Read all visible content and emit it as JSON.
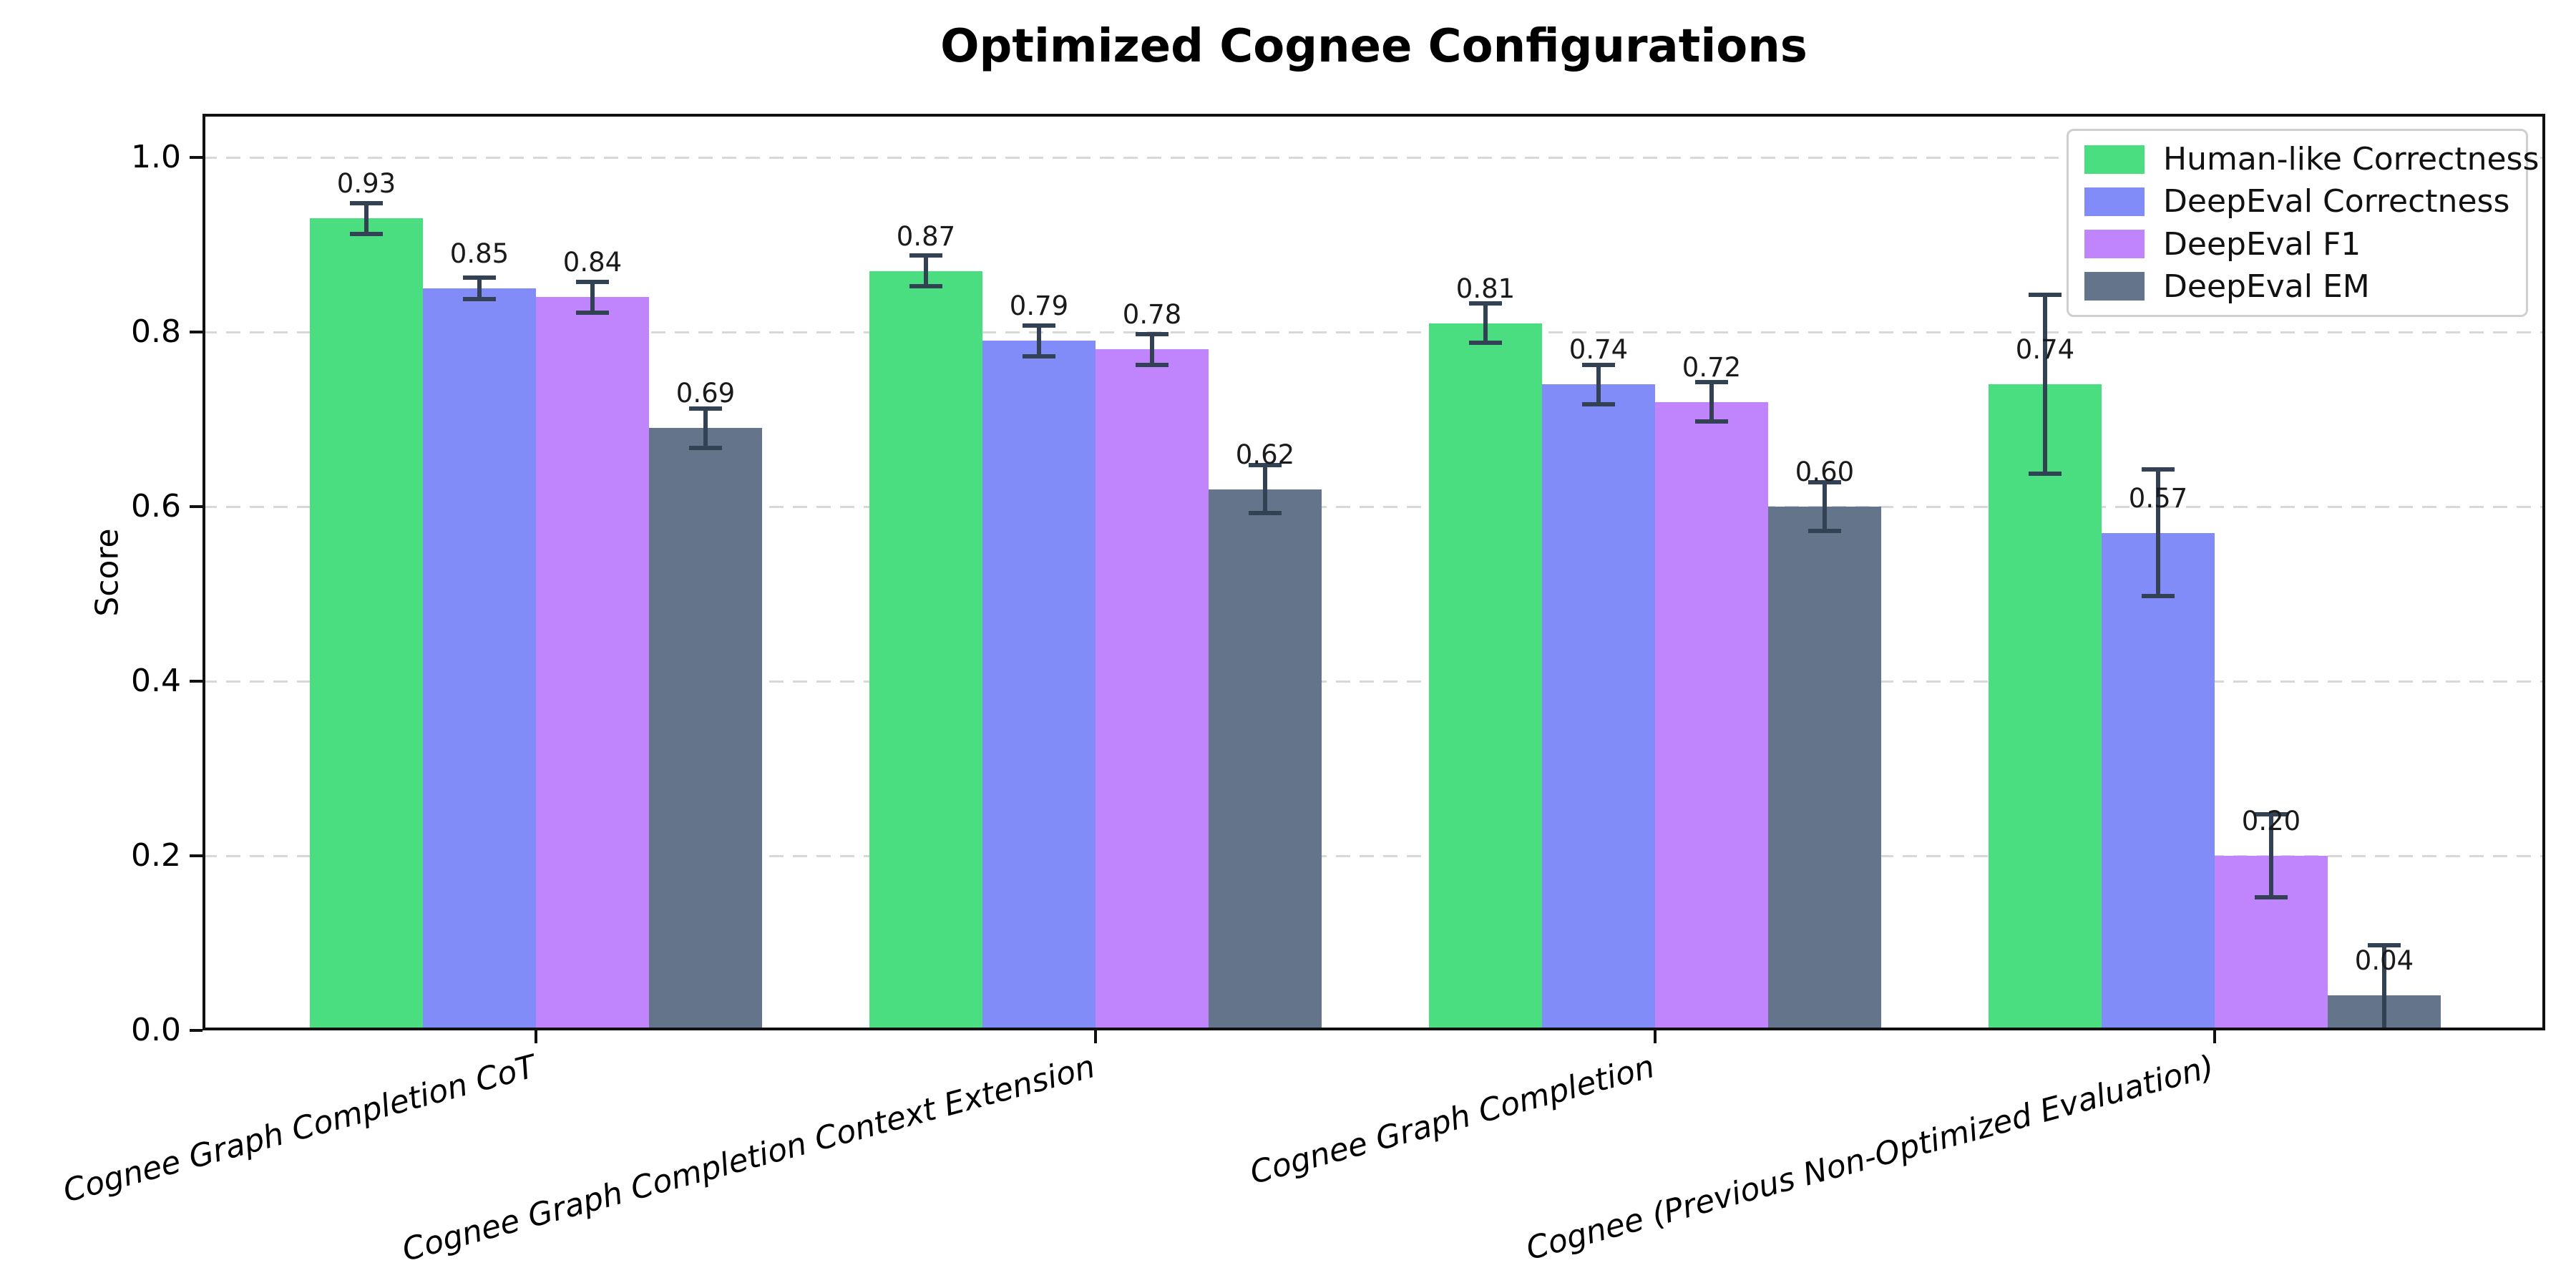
{
  "chart_data": {
    "type": "bar",
    "title": "Optimized Cognee Configurations",
    "xlabel": "",
    "ylabel": "Score",
    "ylim": [
      0,
      1.05
    ],
    "yticks": [
      "0.0",
      "0.2",
      "0.4",
      "0.6",
      "0.8",
      "1.0"
    ],
    "grid": "horizontal dashed gridlines",
    "legend_position": "upper right",
    "error_bar_color": "#334155",
    "categories": [
      "Cognee Graph Completion CoT",
      "Cognee Graph Completion Context Extension",
      "Cognee Graph Completion",
      "Cognee (Previous Non-Optimized Evaluation)"
    ],
    "series": [
      {
        "name": "Human-like Correctness",
        "color": "#4ade80",
        "values": [
          0.93,
          0.87,
          0.81,
          0.74
        ],
        "errors": [
          0.02,
          0.02,
          0.025,
          0.105
        ]
      },
      {
        "name": "DeepEval Correctness",
        "color": "#818cf8",
        "values": [
          0.85,
          0.79,
          0.74,
          0.57
        ],
        "errors": [
          0.015,
          0.02,
          0.025,
          0.075
        ]
      },
      {
        "name": "DeepEval F1",
        "color": "#c084fc",
        "values": [
          0.84,
          0.78,
          0.72,
          0.2
        ],
        "errors": [
          0.02,
          0.02,
          0.025,
          0.05
        ]
      },
      {
        "name": "DeepEval EM",
        "color": "#64748b",
        "values": [
          0.69,
          0.62,
          0.6,
          0.04
        ],
        "errors": [
          0.025,
          0.03,
          0.03,
          0.06
        ]
      }
    ],
    "bar_label_format": "two decimals"
  }
}
